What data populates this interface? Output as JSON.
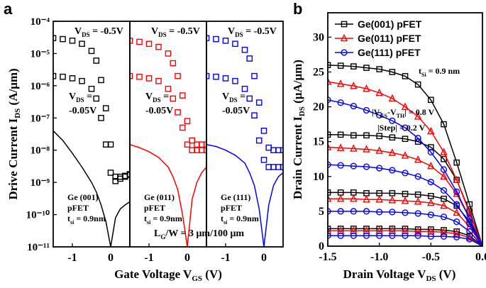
{
  "chart_data": [
    {
      "type": "line",
      "panel_label": "a",
      "y_scale": "log",
      "ylim": [
        1e-11,
        0.0001
      ],
      "yticks": [
        {
          "value": 1e-11,
          "label": "10⁻¹¹"
        },
        {
          "value": 1e-10,
          "label": "10⁻¹⁰"
        },
        {
          "value": 1e-09,
          "label": "10⁻⁹"
        },
        {
          "value": 1e-08,
          "label": "10⁻⁸"
        },
        {
          "value": 1e-07,
          "label": "10⁻⁷"
        },
        {
          "value": 1e-06,
          "label": "10⁻⁶"
        },
        {
          "value": 1e-05,
          "label": "10⁻⁵"
        },
        {
          "value": 0.0001,
          "label": "10⁻⁴"
        }
      ],
      "ylabel": [
        "Drive Current I",
        "DS",
        " (A/μm)"
      ],
      "xlabel": [
        "Gate Voltage V",
        "GS",
        " (V)"
      ],
      "annotations": [
        {
          "lines": [
            [
              "L",
              "G",
              "/W = 3 μm/100 μm"
            ]
          ]
        }
      ],
      "subplots": [
        {
          "xlim": [
            -1.5,
            0.5
          ],
          "xticks": [
            -1,
            0
          ],
          "x": [
            -1.5,
            -1.25,
            -1,
            -0.75,
            -0.5,
            -0.375,
            -0.25,
            -0.125,
            0,
            0.125,
            0.25,
            0.375,
            0.5
          ],
          "series": [
            {
              "color": "#000000",
              "style": "markers",
              "marker": "square",
              "values": [
                3e-05,
                2.8e-05,
                2.5e-05,
                2e-05,
                1.2e-05,
                6e-06,
                1.5e-06,
                2e-07,
                1.5e-08,
                1.5e-09,
                1.5e-09,
                1.6e-09,
                1.8e-09
              ]
            },
            {
              "color": "#000000",
              "style": "markers",
              "marker": "square",
              "values": [
                2e-06,
                1.9e-06,
                1.7e-06,
                1.4e-06,
                8e-07,
                4e-07,
                1e-07,
                1.5e-08,
                2e-09,
                1.1e-09,
                1.3e-09,
                1.5e-09,
                1.7e-09
              ]
            },
            {
              "color": "#000000",
              "style": "line",
              "marker": "none",
              "values": [
                4e-08,
                2e-08,
                8e-09,
                3e-09,
                1e-09,
                5e-10,
                2e-10,
                6e-11,
                1e-11,
                8e-11,
                1.5e-10,
                2e-10,
                2.5e-10
              ]
            }
          ],
          "annotations": [
            {
              "lines": [
                [
                  "V",
                  "DS",
                  " = -0.5V"
                ]
              ]
            },
            {
              "lines": [
                [
                  "V",
                  "DS",
                  " ="
                ],
                [
                  "-0.05V"
                ]
              ]
            },
            {
              "lines": [
                [
                  "Ge (001)"
                ],
                [
                  "pFET"
                ],
                [
                  "t",
                  "si",
                  " = 0.9nm"
                ]
              ]
            }
          ]
        },
        {
          "xlim": [
            -1.5,
            0.5
          ],
          "xticks": [
            -1,
            0
          ],
          "x": [
            -1.5,
            -1.25,
            -1,
            -0.75,
            -0.5,
            -0.375,
            -0.25,
            -0.125,
            0,
            0.125,
            0.25,
            0.375,
            0.5
          ],
          "series": [
            {
              "color": "#ff0000",
              "style": "markers",
              "marker": "square",
              "values": [
                2.5e-05,
                2.3e-05,
                2e-05,
                1.6e-05,
                1e-05,
                5e-06,
                2e-06,
                5e-07,
                8e-08,
                2e-08,
                1.5e-08,
                1.5e-08,
                1.5e-08
              ]
            },
            {
              "color": "#ff0000",
              "style": "markers",
              "marker": "square",
              "values": [
                2e-06,
                1.9e-06,
                1.7e-06,
                1.4e-06,
                8e-07,
                4e-07,
                1.5e-07,
                5e-08,
                1.5e-08,
                1e-08,
                1e-08,
                1e-08,
                1e-08
              ]
            },
            {
              "color": "#ff0000",
              "style": "line",
              "marker": "none",
              "values": [
                1.5e-08,
                1.2e-08,
                9e-09,
                6e-09,
                3e-09,
                1.5e-09,
                6e-10,
                1e-10,
                1e-11,
                3e-10,
                1e-09,
                2e-09,
                3e-09
              ]
            }
          ],
          "annotations": [
            {
              "lines": [
                [
                  "V",
                  "DS",
                  " = -0.5V"
                ]
              ]
            },
            {
              "lines": [
                [
                  "V",
                  "DS",
                  " ="
                ],
                [
                  "-0.05V"
                ]
              ]
            },
            {
              "lines": [
                [
                  "Ge (011)"
                ],
                [
                  "pFET"
                ],
                [
                  "t",
                  "si",
                  " = 0.9nm"
                ]
              ]
            }
          ]
        },
        {
          "xlim": [
            -1.5,
            0.5
          ],
          "xticks": [
            -1,
            0
          ],
          "x": [
            -1.5,
            -1.25,
            -1,
            -0.75,
            -0.5,
            -0.375,
            -0.25,
            -0.125,
            0,
            0.125,
            0.25,
            0.375,
            0.5
          ],
          "series": [
            {
              "color": "#0000ff",
              "style": "markers",
              "marker": "square",
              "values": [
                3e-05,
                2.8e-05,
                2.5e-05,
                2e-05,
                1.3e-05,
                7e-06,
                2e-06,
                3e-07,
                4e-08,
                1.2e-08,
                1e-08,
                1e-08,
                1e-08
              ]
            },
            {
              "color": "#0000ff",
              "style": "markers",
              "marker": "square",
              "values": [
                2e-06,
                1.9e-06,
                1.7e-06,
                1.4e-06,
                8e-07,
                4e-07,
                1.2e-07,
                2e-08,
                5e-09,
                3e-09,
                3e-09,
                3e-09,
                3e-09
              ]
            },
            {
              "color": "#0000ff",
              "style": "line",
              "marker": "none",
              "values": [
                1.5e-08,
                1.3e-08,
                1e-08,
                7e-09,
                4e-09,
                2e-09,
                8e-10,
                1.5e-10,
                1e-11,
                2e-10,
                8e-10,
                1.5e-09,
                2e-09
              ]
            }
          ],
          "annotations": [
            {
              "lines": [
                [
                  "V",
                  "DS",
                  " = -0.5V"
                ]
              ]
            },
            {
              "lines": [
                [
                  "V",
                  "DS",
                  " ="
                ],
                [
                  "-0.05V"
                ]
              ]
            },
            {
              "lines": [
                [
                  "Ge (111)"
                ],
                [
                  "pFET"
                ],
                [
                  "t",
                  "si",
                  " = 0.9nm"
                ]
              ]
            }
          ]
        }
      ]
    },
    {
      "type": "line",
      "panel_label": "b",
      "y_scale": "linear",
      "legend": "upper left",
      "xlim": [
        -1.5,
        0
      ],
      "xticks": [
        {
          "value": -1.5,
          "label": "-1.5"
        },
        {
          "value": -1,
          "label": "-1.0"
        },
        {
          "value": -0.5,
          "label": "-0.5"
        },
        {
          "value": 0,
          "label": "0.0"
        }
      ],
      "ylim": [
        0,
        33.5
      ],
      "yticks": [
        0,
        5,
        10,
        15,
        20,
        25,
        30
      ],
      "ylabel": [
        "Drain Current I",
        "DS",
        " (μA/μm)"
      ],
      "xlabel": [
        "Drain Voltage V",
        "DS",
        " (V)"
      ],
      "annotations": [
        {
          "lines": [
            [
              "t",
              "Si",
              " = 0.9 nm"
            ]
          ]
        },
        {
          "lines": [
            [
              "|V",
              "GS",
              "-V",
              "TH",
              "| = 0.8 V"
            ]
          ]
        },
        {
          "lines": [
            [
              "|Step| = 0.2 V"
            ]
          ]
        }
      ],
      "x": [
        -1.5,
        -1.375,
        -1.25,
        -1.125,
        -1,
        -0.875,
        -0.75,
        -0.625,
        -0.5,
        -0.375,
        -0.25,
        -0.125,
        0
      ],
      "series": [
        {
          "name": "Ge(001) pFET",
          "color": "#000000",
          "style": "line+markers",
          "marker": "square",
          "values": [
            26,
            25.9,
            25.8,
            25.6,
            25.4,
            25,
            24.4,
            23.2,
            21,
            17.5,
            12,
            6,
            0
          ]
        },
        {
          "color": "#000000",
          "style": "line+markers",
          "marker": "square",
          "values": [
            16,
            16,
            15.9,
            15.9,
            15.8,
            15.6,
            15.4,
            15,
            14.2,
            12.5,
            9.5,
            5,
            0
          ]
        },
        {
          "color": "#000000",
          "style": "line+markers",
          "marker": "square",
          "values": [
            7.7,
            7.7,
            7.7,
            7.6,
            7.6,
            7.6,
            7.5,
            7.4,
            7.2,
            6.8,
            5.8,
            3.5,
            0
          ]
        },
        {
          "color": "#000000",
          "style": "line+markers",
          "marker": "square",
          "values": [
            2.5,
            2.5,
            2.5,
            2.5,
            2.5,
            2.5,
            2.5,
            2.4,
            2.4,
            2.3,
            2.1,
            1.5,
            0
          ]
        },
        {
          "name": "Ge(011) pFET",
          "color": "#ff0000",
          "style": "line+markers",
          "marker": "triangle",
          "values": [
            23.6,
            23.3,
            23,
            22.6,
            22,
            21.2,
            20,
            18.6,
            16.5,
            13.5,
            9.5,
            4.8,
            0
          ]
        },
        {
          "color": "#ff0000",
          "style": "line+markers",
          "marker": "triangle",
          "values": [
            14.2,
            14.1,
            14,
            13.9,
            13.7,
            13.4,
            13,
            12.4,
            11.5,
            10,
            7.5,
            4,
            0
          ]
        },
        {
          "color": "#ff0000",
          "style": "line+markers",
          "marker": "triangle",
          "values": [
            6.8,
            6.8,
            6.8,
            6.7,
            6.7,
            6.6,
            6.5,
            6.4,
            6.2,
            5.8,
            4.8,
            2.8,
            0
          ]
        },
        {
          "color": "#ff0000",
          "style": "line+markers",
          "marker": "triangle",
          "values": [
            2.2,
            2.2,
            2.2,
            2.2,
            2.2,
            2.2,
            2.2,
            2.1,
            2.1,
            2,
            1.8,
            1.2,
            0
          ]
        },
        {
          "name": "Ge(111) pFET",
          "color": "#0000ff",
          "style": "line+markers",
          "marker": "circle",
          "values": [
            21,
            20.6,
            20.1,
            19.5,
            18.8,
            18,
            17,
            15.5,
            13.5,
            11,
            7.8,
            4,
            0
          ]
        },
        {
          "color": "#0000ff",
          "style": "line+markers",
          "marker": "circle",
          "values": [
            11.7,
            11.6,
            11.5,
            11.4,
            11.2,
            10.9,
            10.5,
            10,
            9.2,
            8,
            6,
            3.2,
            0
          ]
        },
        {
          "color": "#0000ff",
          "style": "line+markers",
          "marker": "circle",
          "values": [
            5,
            5,
            5,
            5,
            4.9,
            4.9,
            4.8,
            4.7,
            4.5,
            4.2,
            3.5,
            2.1,
            0
          ]
        },
        {
          "color": "#0000ff",
          "style": "line+markers",
          "marker": "circle",
          "values": [
            1.5,
            1.5,
            1.5,
            1.5,
            1.5,
            1.5,
            1.5,
            1.5,
            1.4,
            1.4,
            1.3,
            1,
            0
          ]
        }
      ]
    }
  ]
}
